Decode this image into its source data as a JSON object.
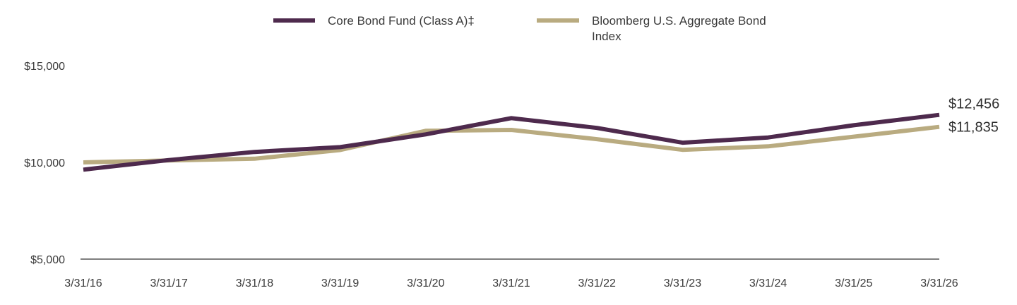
{
  "chart_data": {
    "type": "line",
    "title": "",
    "xlabel": "",
    "ylabel": "",
    "categories": [
      "3/31/16",
      "3/31/17",
      "3/31/18",
      "3/31/19",
      "3/31/20",
      "3/31/21",
      "3/31/22",
      "3/31/23",
      "3/31/24",
      "3/31/25",
      "3/31/26"
    ],
    "y_ticks": [
      "$5,000",
      "$10,000",
      "$15,000"
    ],
    "y_tick_values": [
      5000,
      10000,
      15000
    ],
    "ylim": [
      5000,
      15000
    ],
    "grid": false,
    "legend_position": "top",
    "series": [
      {
        "name": "Core Bond Fund (Class A)‡",
        "color": "#4e2a4d",
        "values": [
          9625,
          10120,
          10540,
          10790,
          11450,
          12290,
          11780,
          11020,
          11290,
          11920,
          12456
        ],
        "end_label": "$12,456"
      },
      {
        "name_lines": [
          "Bloomberg U.S. Aggregate Bond",
          "Index"
        ],
        "color": "#b9ab80",
        "values": [
          10000,
          10100,
          10190,
          10640,
          11630,
          11680,
          11200,
          10650,
          10830,
          11330,
          11835
        ],
        "end_label": "$11,835"
      }
    ]
  }
}
